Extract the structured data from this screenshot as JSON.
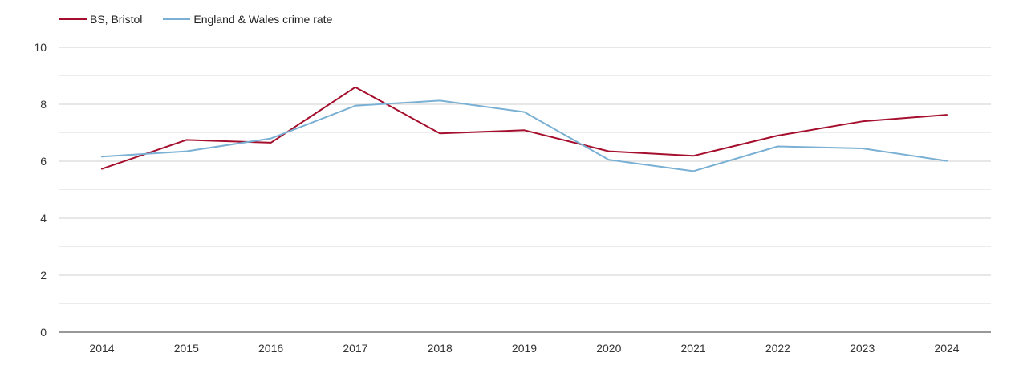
{
  "chart_data": {
    "type": "line",
    "title": "",
    "xlabel": "",
    "ylabel": "",
    "categories": [
      "2014",
      "2015",
      "2016",
      "2017",
      "2018",
      "2019",
      "2020",
      "2021",
      "2022",
      "2023",
      "2024"
    ],
    "ylim": [
      0,
      10
    ],
    "yticks": [
      0,
      2,
      4,
      6,
      8,
      10
    ],
    "y_minor_ticks": [
      1,
      3,
      5,
      7,
      9
    ],
    "grid": true,
    "legend_position": "top-left",
    "series": [
      {
        "name": "BS, Bristol",
        "color": "#a50f2d",
        "values": [
          5.73,
          6.75,
          6.65,
          8.6,
          6.98,
          7.09,
          6.35,
          6.19,
          6.9,
          7.4,
          7.63
        ]
      },
      {
        "name": "England & Wales crime rate",
        "color": "#7ab0d3",
        "values": [
          6.16,
          6.35,
          6.8,
          7.95,
          8.13,
          7.73,
          6.05,
          5.65,
          6.52,
          6.45,
          6.01
        ]
      }
    ]
  }
}
